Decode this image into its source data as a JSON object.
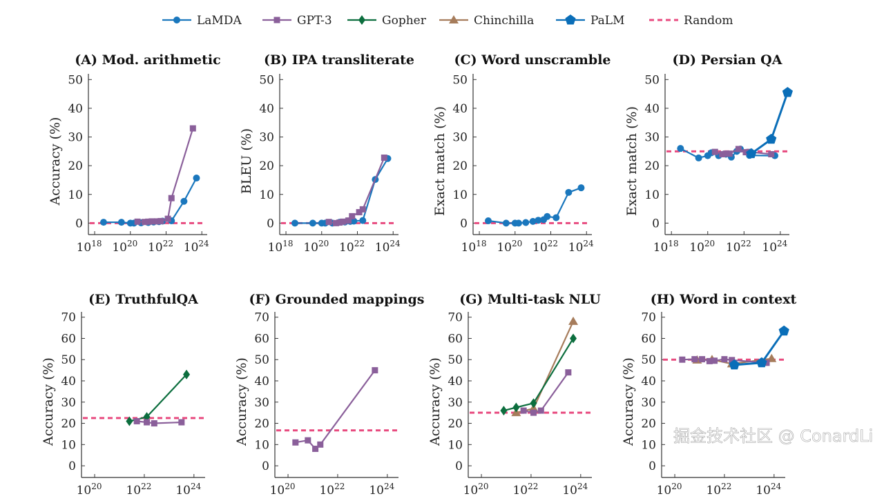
{
  "chart_data": {
    "type": "line",
    "legend": {
      "placement": "top",
      "entries": [
        {
          "name": "LaMDA",
          "color": "#1a77bd",
          "marker": "circle"
        },
        {
          "name": "GPT-3",
          "color": "#8a5f9a",
          "marker": "square"
        },
        {
          "name": "Gopher",
          "color": "#0c6e3e",
          "marker": "diamond"
        },
        {
          "name": "Chinchilla",
          "color": "#a67c5b",
          "marker": "triangle"
        },
        {
          "name": "PaLM",
          "color": "#0a6eb8",
          "marker": "pentagon"
        },
        {
          "name": "Random",
          "color": "#e84a7f",
          "marker": "dashed-line"
        }
      ]
    },
    "x_scale": "log",
    "panels": [
      {
        "title": "(A) Mod. arithmetic",
        "ylabel": "Accuracy (%)",
        "ylim": [
          -4,
          52
        ],
        "yticks": [
          0,
          10,
          20,
          30,
          40,
          50
        ],
        "xticks": [
          18,
          20,
          22,
          24
        ],
        "xlim_exp": [
          17.65,
          24.3
        ],
        "random": 0,
        "series": [
          {
            "name": "LaMDA",
            "points": [
              [
                18.5,
                0.3
              ],
              [
                19.5,
                0.3
              ],
              [
                20,
                0
              ],
              [
                20.2,
                0
              ],
              [
                20.6,
                0.1
              ],
              [
                21,
                0.2
              ],
              [
                21.3,
                0.4
              ],
              [
                21.6,
                0.5
              ],
              [
                21.8,
                0.7
              ],
              [
                22.3,
                0.8
              ],
              [
                23,
                7.6
              ],
              [
                23.7,
                15.7
              ]
            ]
          },
          {
            "name": "GPT-3",
            "points": [
              [
                20.4,
                0.5
              ],
              [
                20.8,
                0.4
              ],
              [
                21,
                0.5
              ],
              [
                21.2,
                0.6
              ],
              [
                21.5,
                0.6
              ],
              [
                21.7,
                0.7
              ],
              [
                22.1,
                1.5
              ],
              [
                22.3,
                8.7
              ],
              [
                23.5,
                33
              ]
            ]
          }
        ]
      },
      {
        "title": "(B) IPA transliterate",
        "ylabel": "BLEU (%)",
        "ylim": [
          -4,
          52
        ],
        "yticks": [
          0,
          10,
          20,
          30,
          40,
          50
        ],
        "xticks": [
          18,
          20,
          22,
          24
        ],
        "xlim_exp": [
          17.65,
          24.3
        ],
        "random": 0,
        "series": [
          {
            "name": "LaMDA",
            "points": [
              [
                18.5,
                0
              ],
              [
                19.5,
                0
              ],
              [
                20,
                0
              ],
              [
                20.2,
                0
              ],
              [
                20.6,
                0
              ],
              [
                21,
                0.3
              ],
              [
                21.3,
                0.4
              ],
              [
                21.6,
                0.6
              ],
              [
                21.8,
                0.7
              ],
              [
                22.3,
                0.9
              ],
              [
                23,
                15.2
              ],
              [
                23.7,
                22.5
              ]
            ]
          },
          {
            "name": "GPT-3",
            "points": [
              [
                20.4,
                0.4
              ],
              [
                20.8,
                0
              ],
              [
                21,
                0.2
              ],
              [
                21.2,
                0.5
              ],
              [
                21.5,
                0.9
              ],
              [
                21.7,
                2.4
              ],
              [
                22.1,
                3.8
              ],
              [
                22.3,
                4.8
              ],
              [
                23.5,
                22.8
              ]
            ]
          }
        ]
      },
      {
        "title": "(C) Word unscramble",
        "ylabel": "Exact match (%)",
        "ylim": [
          -4,
          52
        ],
        "yticks": [
          0,
          10,
          20,
          30,
          40,
          50
        ],
        "xticks": [
          18,
          20,
          22,
          24
        ],
        "xlim_exp": [
          17.65,
          24.3
        ],
        "random": 0,
        "series": [
          {
            "name": "LaMDA",
            "points": [
              [
                18.5,
                0.8
              ],
              [
                19.5,
                0
              ],
              [
                20,
                0
              ],
              [
                20.2,
                0
              ],
              [
                20.6,
                0.2
              ],
              [
                21,
                0.6
              ],
              [
                21.3,
                1
              ],
              [
                21.6,
                1.2
              ],
              [
                21.8,
                2.3
              ],
              [
                22.3,
                1.9
              ],
              [
                23,
                10.7
              ],
              [
                23.7,
                12.3
              ]
            ]
          }
        ]
      },
      {
        "title": "(D) Persian QA",
        "ylabel": "Exact match (%)",
        "ylim": [
          -4,
          52
        ],
        "yticks": [
          0,
          10,
          20,
          30,
          40,
          50
        ],
        "xticks": [
          18,
          20,
          22,
          24
        ],
        "xlim_exp": [
          17.65,
          24.5
        ],
        "random": 25,
        "series": [
          {
            "name": "LaMDA",
            "points": [
              [
                18.5,
                26
              ],
              [
                19.5,
                22.7
              ],
              [
                20,
                23.5
              ],
              [
                20.2,
                24.5
              ],
              [
                20.6,
                23.5
              ],
              [
                21,
                24
              ],
              [
                21.3,
                23
              ],
              [
                21.6,
                25
              ],
              [
                21.8,
                25.8
              ],
              [
                22.3,
                23.6
              ],
              [
                23.7,
                23.5
              ]
            ]
          },
          {
            "name": "GPT-3",
            "points": [
              [
                20.4,
                24.8
              ],
              [
                20.8,
                24
              ],
              [
                21,
                24.2
              ],
              [
                21.2,
                24.2
              ],
              [
                21.7,
                25.8
              ],
              [
                22.1,
                24.7
              ],
              [
                22.3,
                24.8
              ],
              [
                23.5,
                24
              ]
            ]
          },
          {
            "name": "PaLM",
            "points": [
              [
                22.4,
                24.2
              ],
              [
                23.5,
                29.2
              ],
              [
                24.4,
                45.5
              ]
            ]
          }
        ]
      },
      {
        "title": "(E) TruthfulQA",
        "ylabel": "Accuracy (%)",
        "ylim": [
          -5.5,
          72.5
        ],
        "yticks": [
          0,
          10,
          20,
          30,
          40,
          50,
          60,
          70
        ],
        "xticks": [
          20,
          22,
          24
        ],
        "xlim_exp": [
          19.47,
          24.45
        ],
        "random": 22.5,
        "series": [
          {
            "name": "Gopher",
            "points": [
              [
                21.4,
                21
              ],
              [
                22.1,
                23
              ],
              [
                23.7,
                43
              ]
            ]
          },
          {
            "name": "GPT-3",
            "points": [
              [
                21.7,
                21
              ],
              [
                22.1,
                20.5
              ],
              [
                22.4,
                20
              ],
              [
                23.5,
                20.5
              ]
            ]
          }
        ]
      },
      {
        "title": "(F) Grounded mappings",
        "ylabel": "Accuracy (%)",
        "ylim": [
          -5.5,
          72.5
        ],
        "yticks": [
          0,
          10,
          20,
          30,
          40,
          50,
          60,
          70
        ],
        "xticks": [
          20,
          22,
          24
        ],
        "xlim_exp": [
          19.47,
          24.45
        ],
        "random": 16.7,
        "series": [
          {
            "name": "GPT-3",
            "points": [
              [
                20.3,
                11
              ],
              [
                20.8,
                12
              ],
              [
                21.1,
                8
              ],
              [
                21.3,
                10
              ],
              [
                23.5,
                45
              ]
            ]
          }
        ]
      },
      {
        "title": "(G) Multi-task NLU",
        "ylabel": "Accuracy (%)",
        "ylim": [
          -5.5,
          72.5
        ],
        "yticks": [
          0,
          10,
          20,
          30,
          40,
          50,
          60,
          70
        ],
        "xticks": [
          20,
          22,
          24
        ],
        "xlim_exp": [
          19.47,
          24.45
        ],
        "random": 25,
        "series": [
          {
            "name": "Chinchilla",
            "points": [
              [
                21.4,
                25
              ],
              [
                22.1,
                27
              ],
              [
                23.7,
                68
              ]
            ]
          },
          {
            "name": "Gopher",
            "points": [
              [
                20.9,
                26
              ],
              [
                21.4,
                27.5
              ],
              [
                22.1,
                29.5
              ],
              [
                23.7,
                60
              ]
            ]
          },
          {
            "name": "GPT-3",
            "points": [
              [
                21.7,
                26
              ],
              [
                22.1,
                25
              ],
              [
                22.4,
                26
              ],
              [
                23.5,
                44
              ]
            ]
          }
        ]
      },
      {
        "title": "(H) Word in context",
        "ylabel": "Accuracy (%)",
        "ylim": [
          -5.5,
          72.5
        ],
        "yticks": [
          0,
          10,
          20,
          30,
          40,
          50,
          60,
          70
        ],
        "xticks": [
          20,
          22,
          24
        ],
        "xlim_exp": [
          19.47,
          24.45
        ],
        "random": 50,
        "series": [
          {
            "name": "Chinchilla",
            "points": [
              [
                20.9,
                49.8
              ],
              [
                21.5,
                50
              ],
              [
                22.3,
                48
              ],
              [
                23.9,
                50.5
              ]
            ]
          },
          {
            "name": "GPT-3",
            "points": [
              [
                20.3,
                50
              ],
              [
                20.8,
                50.2
              ],
              [
                21.1,
                50.2
              ],
              [
                21.4,
                49.3
              ],
              [
                21.6,
                49.5
              ],
              [
                22,
                50.2
              ],
              [
                22.3,
                49.8
              ],
              [
                23.7,
                48.5
              ]
            ]
          },
          {
            "name": "PaLM",
            "points": [
              [
                22.4,
                47.5
              ],
              [
                23.5,
                48.5
              ],
              [
                24.4,
                63.5
              ]
            ]
          }
        ]
      }
    ]
  },
  "watermark": "掘金技术社区 @ ConardLi"
}
